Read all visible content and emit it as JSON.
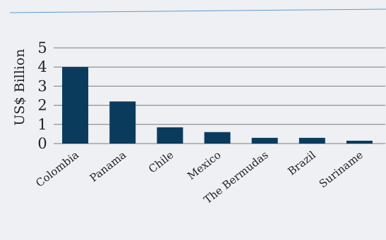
{
  "colors": {
    "background": "#eef0f4",
    "bar": "#0b3b5c",
    "gridline": "#7a7a7a",
    "top_rule": "#5b9bd5"
  },
  "chart_data": {
    "type": "bar",
    "categories": [
      "Colombia",
      "Panama",
      "Chile",
      "Mexico",
      "The Bermudas",
      "Brazil",
      "Suriname"
    ],
    "values": [
      4.0,
      2.2,
      0.85,
      0.6,
      0.3,
      0.3,
      0.15
    ],
    "ylabel": "US$ Billion",
    "xlabel": "",
    "ylim": [
      0,
      5
    ],
    "yticks": [
      0,
      1,
      2,
      3,
      4,
      5
    ],
    "grid": true,
    "legend": "none"
  }
}
